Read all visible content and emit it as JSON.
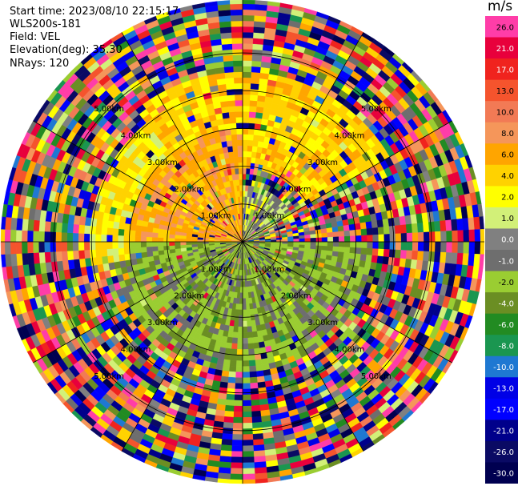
{
  "header": {
    "start_time": "Start time: 2023/08/10 22:15:17",
    "instrument": "WLS200s-181",
    "field": "Field: VEL",
    "elevation": "Elevation(deg): 35.30",
    "nrays": "NRays: 120"
  },
  "colorbar": {
    "unit": "m/s",
    "levels": [
      {
        "label": "26.0",
        "color": "#ff3da8"
      },
      {
        "label": "21.0",
        "color": "#e8003c"
      },
      {
        "label": "17.0",
        "color": "#f0231e"
      },
      {
        "label": "13.0",
        "color": "#f5542d"
      },
      {
        "label": "10.0",
        "color": "#f27a55"
      },
      {
        "label": "8.0",
        "color": "#f5965a"
      },
      {
        "label": "6.0",
        "color": "#ffa500"
      },
      {
        "label": "4.0",
        "color": "#ffd200"
      },
      {
        "label": "2.0",
        "color": "#ffff00"
      },
      {
        "label": "1.0",
        "color": "#d2f078"
      },
      {
        "label": "0.0",
        "color": "#808080"
      },
      {
        "label": "-1.0",
        "color": "#6e6e6e"
      },
      {
        "label": "-2.0",
        "color": "#9acd32"
      },
      {
        "label": "-4.0",
        "color": "#6b8e23"
      },
      {
        "label": "-6.0",
        "color": "#228b22"
      },
      {
        "label": "-8.0",
        "color": "#1a9650"
      },
      {
        "label": "-10.0",
        "color": "#1e78d2"
      },
      {
        "label": "-13.0",
        "color": "#0000e6"
      },
      {
        "label": "-17.0",
        "color": "#0000ff"
      },
      {
        "label": "-21.0",
        "color": "#00008b"
      },
      {
        "label": "-26.0",
        "color": "#0a0a64"
      },
      {
        "label": "-30.0",
        "color": "#000050"
      }
    ]
  },
  "chart_data": {
    "type": "heatmap",
    "projection": "polar PPI",
    "field": "VEL",
    "units": "m/s",
    "nrays": 120,
    "range_rings_km": [
      1.0,
      2.0,
      3.0,
      4.0,
      5.0
    ],
    "ring_labels": [
      "1.00km",
      "2.00km",
      "3.00km",
      "4.00km",
      "5.00km"
    ],
    "max_range_km": 6.4,
    "regions": [
      {
        "azimuth_deg": [
          270,
          360
        ],
        "range_km": [
          0,
          3.0
        ],
        "velocity": 5.0
      },
      {
        "azimuth_deg": [
          0,
          70
        ],
        "range_km": [
          0,
          1.5
        ],
        "velocity": -0.5
      },
      {
        "azimuth_deg": [
          260,
          320
        ],
        "range_km": [
          3.0,
          4.0
        ],
        "velocity": 2.0
      },
      {
        "azimuth_deg": [
          320,
          60
        ],
        "range_km": [
          2.0,
          4.5
        ],
        "velocity": 3.0
      },
      {
        "azimuth_deg": [
          90,
          270
        ],
        "range_km": [
          0,
          3.5
        ],
        "velocity": -3.0
      },
      {
        "azimuth_deg": [
          0,
          360
        ],
        "range_km": [
          4.5,
          6.4
        ],
        "velocity": "noise"
      }
    ]
  }
}
